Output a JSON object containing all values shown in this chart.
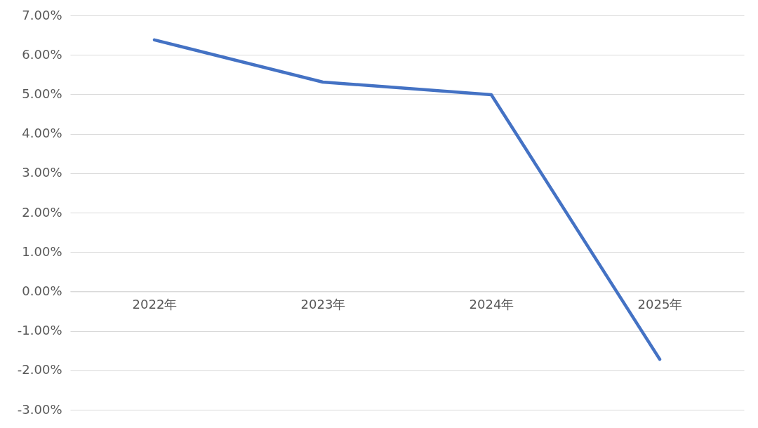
{
  "chart_data": {
    "type": "line",
    "categories": [
      "2022年",
      "2023年",
      "2024年",
      "2025年"
    ],
    "series": [
      {
        "color": "#4472c4",
        "values": [
          6.38,
          5.31,
          4.99,
          -1.72
        ]
      }
    ],
    "ylim": [
      -3,
      7
    ],
    "yticks": [
      {
        "value": -3,
        "label": "-3.00%"
      },
      {
        "value": -2,
        "label": "-2.00%"
      },
      {
        "value": -1,
        "label": "-1.00%"
      },
      {
        "value": 0,
        "label": "0.00%"
      },
      {
        "value": 1,
        "label": "1.00%"
      },
      {
        "value": 2,
        "label": "2.00%"
      },
      {
        "value": 3,
        "label": "3.00%"
      },
      {
        "value": 4,
        "label": "4.00%"
      },
      {
        "value": 5,
        "label": "5.00%"
      },
      {
        "value": 6,
        "label": "6.00%"
      },
      {
        "value": 7,
        "label": "7.00%"
      }
    ],
    "grid": "y",
    "marker": "none",
    "line_style": "solid"
  }
}
